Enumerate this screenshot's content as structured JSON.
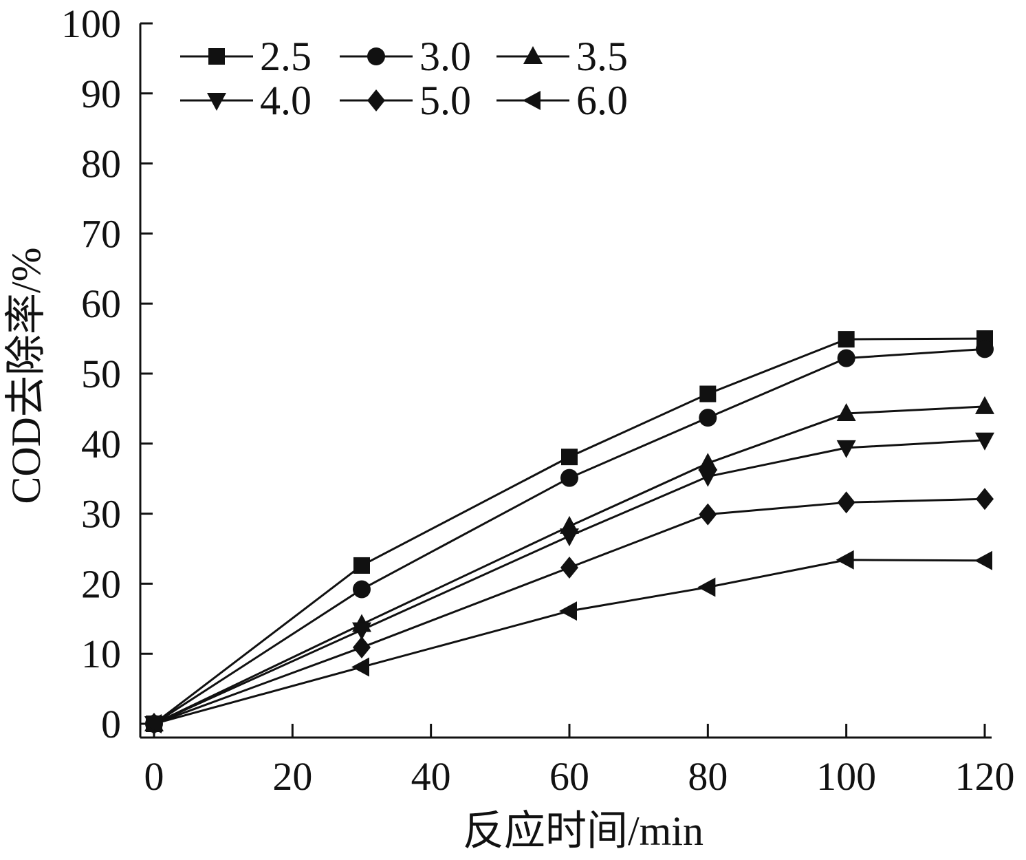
{
  "chart_data": {
    "type": "line",
    "xlabel": "反应时间/min",
    "ylabel": "COD去除率/%",
    "xlim": [
      0,
      120
    ],
    "ylim": [
      0,
      100
    ],
    "x_ticks": [
      "0",
      "20",
      "40",
      "60",
      "80",
      "100",
      "120"
    ],
    "y_ticks": [
      "0",
      "10",
      "20",
      "30",
      "40",
      "50",
      "60",
      "70",
      "80",
      "90",
      "100"
    ],
    "grid": false,
    "legend_position": "top-left",
    "x": [
      0,
      30,
      60,
      80,
      100,
      120
    ],
    "series": [
      {
        "name": "2.5",
        "marker": "square",
        "values": [
          0,
          22.6,
          38.1,
          47.1,
          54.9,
          55.0
        ]
      },
      {
        "name": "3.0",
        "marker": "circle",
        "values": [
          0,
          19.2,
          35.1,
          43.7,
          52.2,
          53.5
        ]
      },
      {
        "name": "3.5",
        "marker": "triangle-up",
        "values": [
          0,
          14.2,
          28.2,
          37.2,
          44.3,
          45.3
        ]
      },
      {
        "name": "4.0",
        "marker": "triangle-down",
        "values": [
          0,
          13.4,
          26.8,
          35.3,
          39.4,
          40.5
        ]
      },
      {
        "name": "5.0",
        "marker": "diamond",
        "values": [
          0,
          10.9,
          22.3,
          29.9,
          31.6,
          32.1
        ]
      },
      {
        "name": "6.0",
        "marker": "triangle-left",
        "values": [
          0,
          8.1,
          16.1,
          19.5,
          23.4,
          23.3
        ]
      }
    ],
    "line_color": "#111111"
  }
}
